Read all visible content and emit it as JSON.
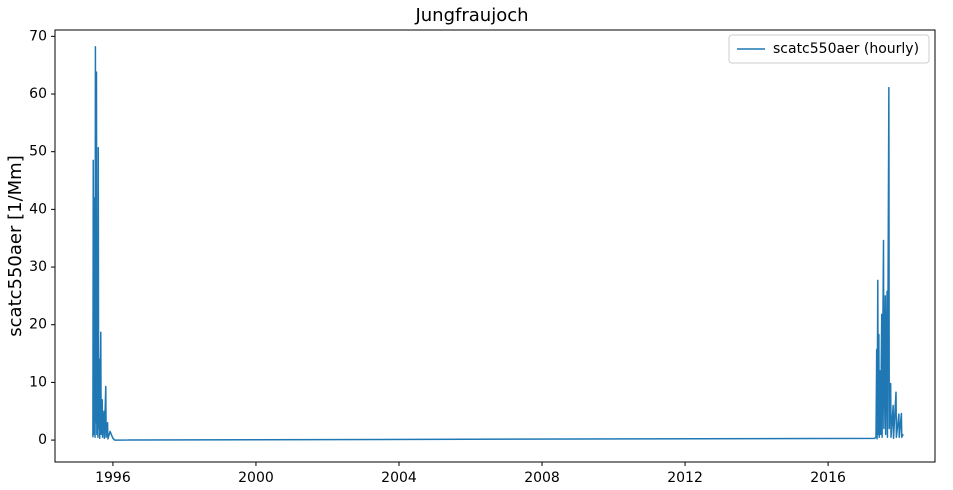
{
  "chart_data": {
    "type": "line",
    "title": "Jungfraujoch",
    "y_label": "scatc550aer [1/Mm]",
    "x": [
      1995.44,
      1995.45,
      1995.46,
      1995.47,
      1995.48,
      1995.49,
      1995.5,
      1995.51,
      1995.52,
      1995.54,
      1995.55,
      1995.57,
      1995.58,
      1995.59,
      1995.6,
      1995.62,
      1995.63,
      1995.66,
      1995.67,
      1995.7,
      1995.71,
      1995.75,
      1995.76,
      1995.8,
      1995.81,
      1995.85,
      1995.86,
      1995.92,
      1996.0,
      1996.05,
      2017.3,
      2017.34,
      2017.36,
      2017.37,
      2017.39,
      2017.4,
      2017.42,
      2017.43,
      2017.46,
      2017.47,
      2017.5,
      2017.51,
      2017.55,
      2017.56,
      2017.6,
      2017.61,
      2017.65,
      2017.66,
      2017.7,
      2017.71,
      2017.75,
      2017.76,
      2017.82,
      2017.83,
      2017.9,
      2017.91,
      2017.98,
      2017.99,
      2018.05,
      2018.06,
      2018.1
    ],
    "series": [
      {
        "name": "scatc550aer (hourly)",
        "color": "#1f77b4",
        "values": [
          0.5,
          48.5,
          1,
          42,
          2,
          28,
          0.5,
          68.2,
          3,
          63.8,
          1,
          22,
          0.5,
          50.7,
          2,
          14,
          0.3,
          18.7,
          1,
          7,
          0.5,
          5,
          0.3,
          9.3,
          0.5,
          3,
          0.2,
          1.5,
          0.3,
          0.0,
          0.3,
          0.5,
          15.7,
          0.2,
          27.7,
          1,
          18.3,
          0.5,
          12,
          1,
          21.8,
          0.5,
          34.6,
          2,
          25,
          1,
          25.8,
          0.5,
          61.1,
          2,
          9.8,
          0.5,
          6,
          0.3,
          8.3,
          0.5,
          4.5,
          0.5,
          4.6,
          0.5,
          1
        ]
      }
    ],
    "xlim": [
      1994.38,
      2018.99
    ],
    "xticks": [
      1996,
      2000,
      2004,
      2008,
      2012,
      2016
    ],
    "ylim": [
      -3.8,
      71.1
    ],
    "yticks": [
      0,
      10,
      20,
      30,
      40,
      50,
      60,
      70
    ],
    "legend": "upper right"
  }
}
